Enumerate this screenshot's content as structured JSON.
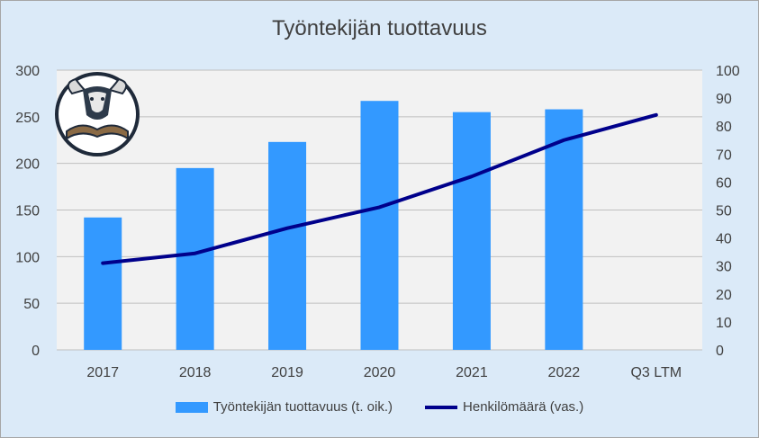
{
  "chart_data": {
    "type": "bar",
    "title": "Työntekijän tuottavuus",
    "categories": [
      "2017",
      "2018",
      "2019",
      "2020",
      "2021",
      "2022",
      "Q3 LTM"
    ],
    "series": [
      {
        "name": "Työntekijän tuottavuus (t. oik.)",
        "type": "bar",
        "axis": "left",
        "color": "#3399ff",
        "values": [
          142,
          195,
          223,
          267,
          255,
          258,
          null
        ]
      },
      {
        "name": "Henkilömäärä (vas.)",
        "type": "line",
        "axis": "right",
        "color": "#00008b",
        "values": [
          31,
          34.5,
          43.5,
          51,
          62,
          75,
          84
        ]
      }
    ],
    "left_axis": {
      "min": 0,
      "max": 300,
      "step": 50,
      "ticks": [
        "0",
        "50",
        "100",
        "150",
        "200",
        "250",
        "300"
      ]
    },
    "right_axis": {
      "min": 0,
      "max": 100,
      "step": 10,
      "ticks": [
        "0",
        "10",
        "20",
        "30",
        "40",
        "50",
        "60",
        "70",
        "80",
        "90",
        "100"
      ]
    },
    "grid": true,
    "legend_position": "bottom",
    "plot_background": "#f2f2f2",
    "logo": "bull-reading-book-logo"
  }
}
